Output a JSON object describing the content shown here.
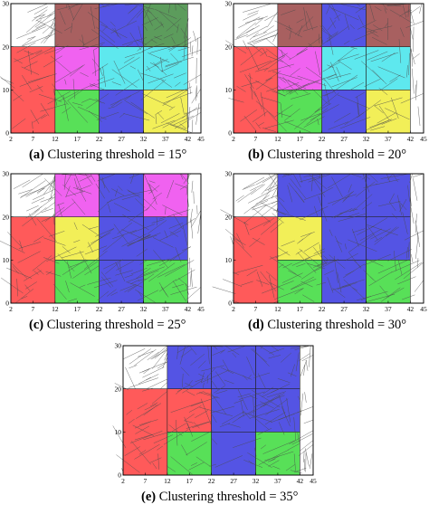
{
  "axes": {
    "x_ticks": [
      2,
      7,
      12,
      17,
      22,
      27,
      32,
      37,
      42,
      45
    ],
    "y_ticks": [
      0,
      10,
      20,
      30
    ],
    "xlim": [
      2,
      45
    ],
    "ylim": [
      0,
      30
    ],
    "grid": false
  },
  "colors": {
    "red": "#ff5a5a",
    "magenta": "#f062f0",
    "cyan": "#5ee8ee",
    "green": "#58e058",
    "blue": "#5454e4",
    "yellow": "#f2ef58",
    "brown": "#a86060",
    "darkgreen": "#5c9c5c",
    "fracture": "#4a4a4a",
    "cell_border": "#222222"
  },
  "panels": [
    {
      "label": "(a)",
      "caption": "Clustering threshold = 15°",
      "cells": [
        {
          "x": [
            2,
            12
          ],
          "y": [
            0,
            20
          ],
          "color": "red"
        },
        {
          "x": [
            12,
            22
          ],
          "y": [
            10,
            20
          ],
          "color": "magenta"
        },
        {
          "x": [
            12,
            22
          ],
          "y": [
            0,
            10
          ],
          "color": "green"
        },
        {
          "x": [
            22,
            32
          ],
          "y": [
            10,
            20
          ],
          "color": "cyan"
        },
        {
          "x": [
            22,
            32
          ],
          "y": [
            0,
            10
          ],
          "color": "blue"
        },
        {
          "x": [
            32,
            42
          ],
          "y": [
            10,
            20
          ],
          "color": "cyan"
        },
        {
          "x": [
            32,
            42
          ],
          "y": [
            0,
            10
          ],
          "color": "yellow"
        },
        {
          "x": [
            12,
            22
          ],
          "y": [
            20,
            30
          ],
          "color": "brown"
        },
        {
          "x": [
            22,
            32
          ],
          "y": [
            20,
            30
          ],
          "color": "blue"
        },
        {
          "x": [
            32,
            42
          ],
          "y": [
            20,
            30
          ],
          "color": "darkgreen"
        }
      ]
    },
    {
      "label": "(b)",
      "caption": "Clustering threshold = 20°",
      "cells": [
        {
          "x": [
            2,
            12
          ],
          "y": [
            0,
            20
          ],
          "color": "red"
        },
        {
          "x": [
            12,
            22
          ],
          "y": [
            10,
            20
          ],
          "color": "magenta"
        },
        {
          "x": [
            12,
            22
          ],
          "y": [
            0,
            10
          ],
          "color": "green"
        },
        {
          "x": [
            22,
            32
          ],
          "y": [
            10,
            20
          ],
          "color": "cyan"
        },
        {
          "x": [
            22,
            32
          ],
          "y": [
            0,
            10
          ],
          "color": "blue"
        },
        {
          "x": [
            32,
            42
          ],
          "y": [
            10,
            20
          ],
          "color": "cyan"
        },
        {
          "x": [
            32,
            42
          ],
          "y": [
            0,
            10
          ],
          "color": "yellow"
        },
        {
          "x": [
            12,
            22
          ],
          "y": [
            20,
            30
          ],
          "color": "brown"
        },
        {
          "x": [
            22,
            32
          ],
          "y": [
            20,
            30
          ],
          "color": "blue"
        },
        {
          "x": [
            32,
            42
          ],
          "y": [
            20,
            30
          ],
          "color": "brown"
        }
      ]
    },
    {
      "label": "(c)",
      "caption": "Clustering threshold = 25°",
      "cells": [
        {
          "x": [
            2,
            12
          ],
          "y": [
            0,
            20
          ],
          "color": "red"
        },
        {
          "x": [
            12,
            22
          ],
          "y": [
            10,
            20
          ],
          "color": "yellow"
        },
        {
          "x": [
            12,
            22
          ],
          "y": [
            0,
            10
          ],
          "color": "green"
        },
        {
          "x": [
            22,
            32
          ],
          "y": [
            10,
            20
          ],
          "color": "blue"
        },
        {
          "x": [
            22,
            32
          ],
          "y": [
            0,
            10
          ],
          "color": "blue"
        },
        {
          "x": [
            32,
            42
          ],
          "y": [
            10,
            20
          ],
          "color": "blue"
        },
        {
          "x": [
            32,
            42
          ],
          "y": [
            0,
            10
          ],
          "color": "green"
        },
        {
          "x": [
            12,
            22
          ],
          "y": [
            20,
            30
          ],
          "color": "magenta"
        },
        {
          "x": [
            22,
            32
          ],
          "y": [
            20,
            30
          ],
          "color": "blue"
        },
        {
          "x": [
            32,
            42
          ],
          "y": [
            20,
            30
          ],
          "color": "magenta"
        }
      ]
    },
    {
      "label": "(d)",
      "caption": "Clustering threshold = 30°",
      "cells": [
        {
          "x": [
            2,
            12
          ],
          "y": [
            0,
            20
          ],
          "color": "red"
        },
        {
          "x": [
            12,
            22
          ],
          "y": [
            10,
            20
          ],
          "color": "yellow"
        },
        {
          "x": [
            12,
            22
          ],
          "y": [
            0,
            10
          ],
          "color": "green"
        },
        {
          "x": [
            22,
            32
          ],
          "y": [
            10,
            20
          ],
          "color": "blue"
        },
        {
          "x": [
            22,
            32
          ],
          "y": [
            0,
            10
          ],
          "color": "blue"
        },
        {
          "x": [
            32,
            42
          ],
          "y": [
            10,
            20
          ],
          "color": "blue"
        },
        {
          "x": [
            32,
            42
          ],
          "y": [
            0,
            10
          ],
          "color": "green"
        },
        {
          "x": [
            12,
            22
          ],
          "y": [
            20,
            30
          ],
          "color": "blue"
        },
        {
          "x": [
            22,
            32
          ],
          "y": [
            20,
            30
          ],
          "color": "blue"
        },
        {
          "x": [
            32,
            42
          ],
          "y": [
            20,
            30
          ],
          "color": "blue"
        }
      ]
    },
    {
      "label": "(e)",
      "caption": "Clustering threshold = 35°",
      "cells": [
        {
          "x": [
            2,
            12
          ],
          "y": [
            0,
            20
          ],
          "color": "red"
        },
        {
          "x": [
            12,
            22
          ],
          "y": [
            10,
            20
          ],
          "color": "red"
        },
        {
          "x": [
            12,
            22
          ],
          "y": [
            0,
            10
          ],
          "color": "green"
        },
        {
          "x": [
            22,
            32
          ],
          "y": [
            10,
            20
          ],
          "color": "blue"
        },
        {
          "x": [
            22,
            32
          ],
          "y": [
            0,
            10
          ],
          "color": "blue"
        },
        {
          "x": [
            32,
            42
          ],
          "y": [
            10,
            20
          ],
          "color": "blue"
        },
        {
          "x": [
            32,
            42
          ],
          "y": [
            0,
            10
          ],
          "color": "green"
        },
        {
          "x": [
            12,
            22
          ],
          "y": [
            20,
            30
          ],
          "color": "blue"
        },
        {
          "x": [
            22,
            32
          ],
          "y": [
            20,
            30
          ],
          "color": "blue"
        },
        {
          "x": [
            32,
            42
          ],
          "y": [
            20,
            30
          ],
          "color": "blue"
        }
      ]
    }
  ]
}
